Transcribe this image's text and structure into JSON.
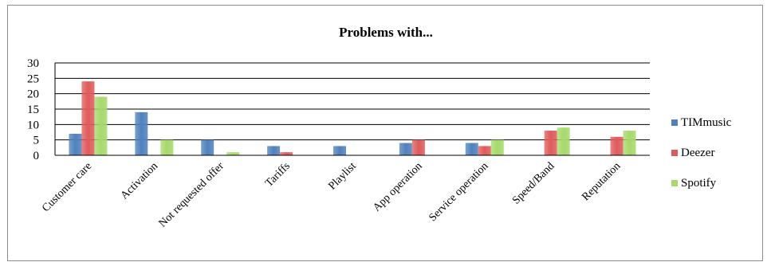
{
  "chart_data": {
    "type": "bar",
    "title": "Problems with...",
    "xlabel": "",
    "ylabel": "",
    "ylim": [
      0,
      30
    ],
    "yticks": [
      0,
      5,
      10,
      15,
      20,
      25,
      30
    ],
    "grid": true,
    "legend_position": "right",
    "categories": [
      "Customer care",
      "Activation",
      "Not requested offer",
      "Tariffs",
      "Playlist",
      "App operation",
      "Service operation",
      "Speed/Band",
      "Reputation"
    ],
    "series": [
      {
        "name": "TIMmusic",
        "color": "#4f81bd",
        "values": [
          7,
          14,
          5,
          3,
          3,
          4,
          4,
          0,
          0
        ]
      },
      {
        "name": "Deezer",
        "color": "#e05a5a",
        "values": [
          24,
          0,
          0,
          1,
          0,
          5,
          3,
          8,
          6
        ]
      },
      {
        "name": "Spotify",
        "color": "#a6d96a",
        "values": [
          19,
          5,
          1,
          0,
          0,
          0,
          5,
          9,
          8
        ]
      }
    ]
  }
}
